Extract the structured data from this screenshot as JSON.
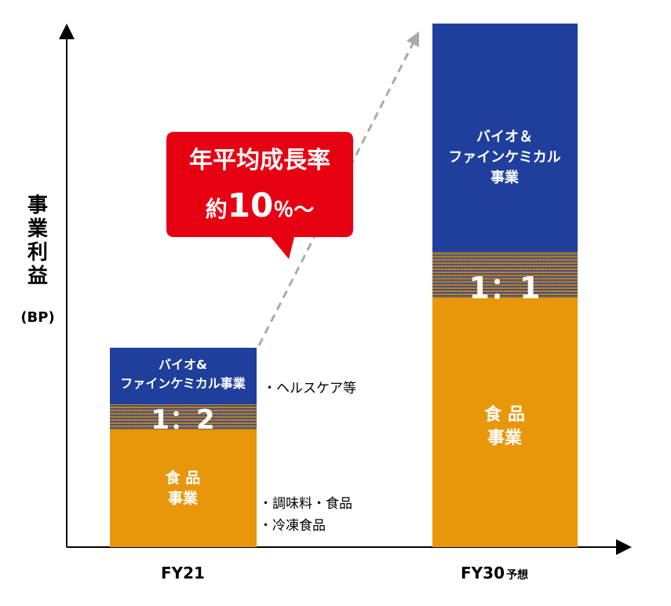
{
  "y_axis_label": {
    "main": "事業利益",
    "unit": "(BP)"
  },
  "callout": {
    "line1": "年平均成長率",
    "prefix": "約",
    "number": "10",
    "suffix": "％～"
  },
  "bars": [
    {
      "category": "FY21",
      "top_label": [
        "バイオ&",
        "ファインケミカル事業"
      ],
      "ratio": "1：2",
      "bottom_label": [
        "食 品",
        "事業"
      ],
      "notes": [
        "・ヘルスケア等",
        "・調味料・食品",
        "・冷凍食品"
      ]
    },
    {
      "category": "FY30",
      "category_suffix": "予想",
      "top_label": [
        "バイオ＆",
        "ファインケミカル",
        "事業"
      ],
      "ratio": "1：1",
      "bottom_label": [
        "食 品",
        "事業"
      ]
    }
  ]
}
